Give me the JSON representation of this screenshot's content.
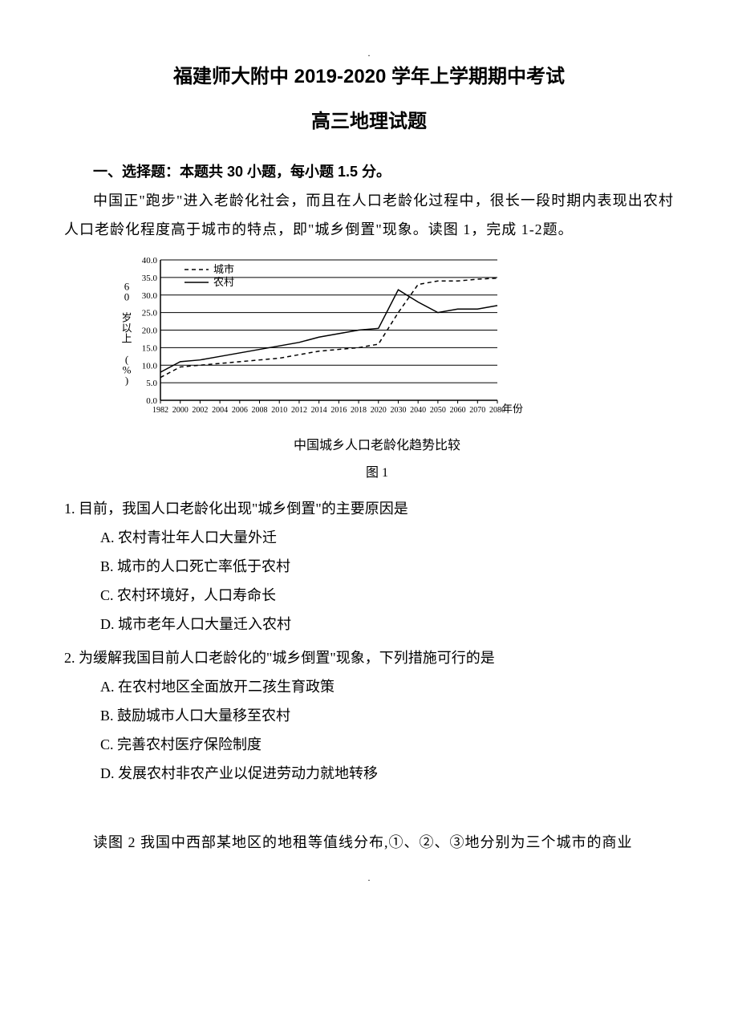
{
  "header": {
    "title_line1": "福建师大附中 2019-2020 学年上学期期中考试",
    "title_line2": "高三地理试题"
  },
  "section1": {
    "header": "一、选择题：本题共 30 小题，每小题 1.5 分。",
    "intro": "中国正\"跑步\"进入老龄化社会，而且在人口老龄化过程中，很长一段时期内表现出农村人口老龄化程度高于城市的特点，即\"城乡倒置\"现象。读图 1，完成 1-2题。"
  },
  "chart": {
    "type": "line",
    "caption": "中国城乡人口老龄化趋势比较",
    "figure_label": "图 1",
    "y_label": "60 岁以上 (%)",
    "x_label": "年份",
    "y_ticks": [
      "0.0",
      "5.0",
      "10.0",
      "15.0",
      "20.0",
      "25.0",
      "30.0",
      "35.0",
      "40.0"
    ],
    "y_min": 0,
    "y_max": 40,
    "x_ticks": [
      "1982",
      "2000",
      "2002",
      "2004",
      "2006",
      "2008",
      "2010",
      "2012",
      "2014",
      "2016",
      "2018",
      "2020",
      "2030",
      "2040",
      "2050",
      "2060",
      "2070",
      "2080"
    ],
    "legend": [
      {
        "label": "城市",
        "dash": "5,4",
        "color": "#000000"
      },
      {
        "label": "农村",
        "dash": "0",
        "color": "#000000"
      }
    ],
    "series_city": [
      {
        "x": "1982",
        "y": 6.5
      },
      {
        "x": "2000",
        "y": 9.5
      },
      {
        "x": "2002",
        "y": 10
      },
      {
        "x": "2004",
        "y": 10.5
      },
      {
        "x": "2006",
        "y": 11
      },
      {
        "x": "2008",
        "y": 11.5
      },
      {
        "x": "2010",
        "y": 12
      },
      {
        "x": "2012",
        "y": 13
      },
      {
        "x": "2014",
        "y": 14
      },
      {
        "x": "2016",
        "y": 14.5
      },
      {
        "x": "2018",
        "y": 15
      },
      {
        "x": "2020",
        "y": 16
      },
      {
        "x": "2030",
        "y": 25
      },
      {
        "x": "2040",
        "y": 33
      },
      {
        "x": "2050",
        "y": 34
      },
      {
        "x": "2060",
        "y": 34
      },
      {
        "x": "2070",
        "y": 34.5
      },
      {
        "x": "2080",
        "y": 34.8
      }
    ],
    "series_rural": [
      {
        "x": "1982",
        "y": 8
      },
      {
        "x": "2000",
        "y": 11
      },
      {
        "x": "2002",
        "y": 11.5
      },
      {
        "x": "2004",
        "y": 12.5
      },
      {
        "x": "2006",
        "y": 13.5
      },
      {
        "x": "2008",
        "y": 14.5
      },
      {
        "x": "2010",
        "y": 15.5
      },
      {
        "x": "2012",
        "y": 16.5
      },
      {
        "x": "2014",
        "y": 18
      },
      {
        "x": "2016",
        "y": 19
      },
      {
        "x": "2018",
        "y": 20
      },
      {
        "x": "2020",
        "y": 20.5
      },
      {
        "x": "2030",
        "y": 31.5
      },
      {
        "x": "2040",
        "y": 28
      },
      {
        "x": "2050",
        "y": 25
      },
      {
        "x": "2060",
        "y": 26
      },
      {
        "x": "2070",
        "y": 26
      },
      {
        "x": "2080",
        "y": 27
      }
    ],
    "line_width": 1.5,
    "axis_color": "#000000",
    "grid_color": "#000000",
    "tick_fontsize": 11,
    "label_fontsize": 13,
    "background_color": "#ffffff"
  },
  "q1": {
    "stem": "1. 目前，我国人口老龄化出现\"城乡倒置\"的主要原因是",
    "A": "A. 农村青壮年人口大量外迁",
    "B": "B. 城市的人口死亡率低于农村",
    "C": "C. 农村环境好，人口寿命长",
    "D": "D. 城市老年人口大量迁入农村"
  },
  "q2": {
    "stem": "2. 为缓解我国目前人口老龄化的\"城乡倒置\"现象，下列措施可行的是",
    "A": "A. 在农村地区全面放开二孩生育政策",
    "B": "B. 鼓励城市人口大量移至农村",
    "C": "C. 完善农村医疗保险制度",
    "D": "D. 发展农村非农产业以促进劳动力就地转移"
  },
  "footer": {
    "intro": "读图 2 我国中西部某地区的地租等值线分布,①、②、③地分别为三个城市的商业"
  }
}
